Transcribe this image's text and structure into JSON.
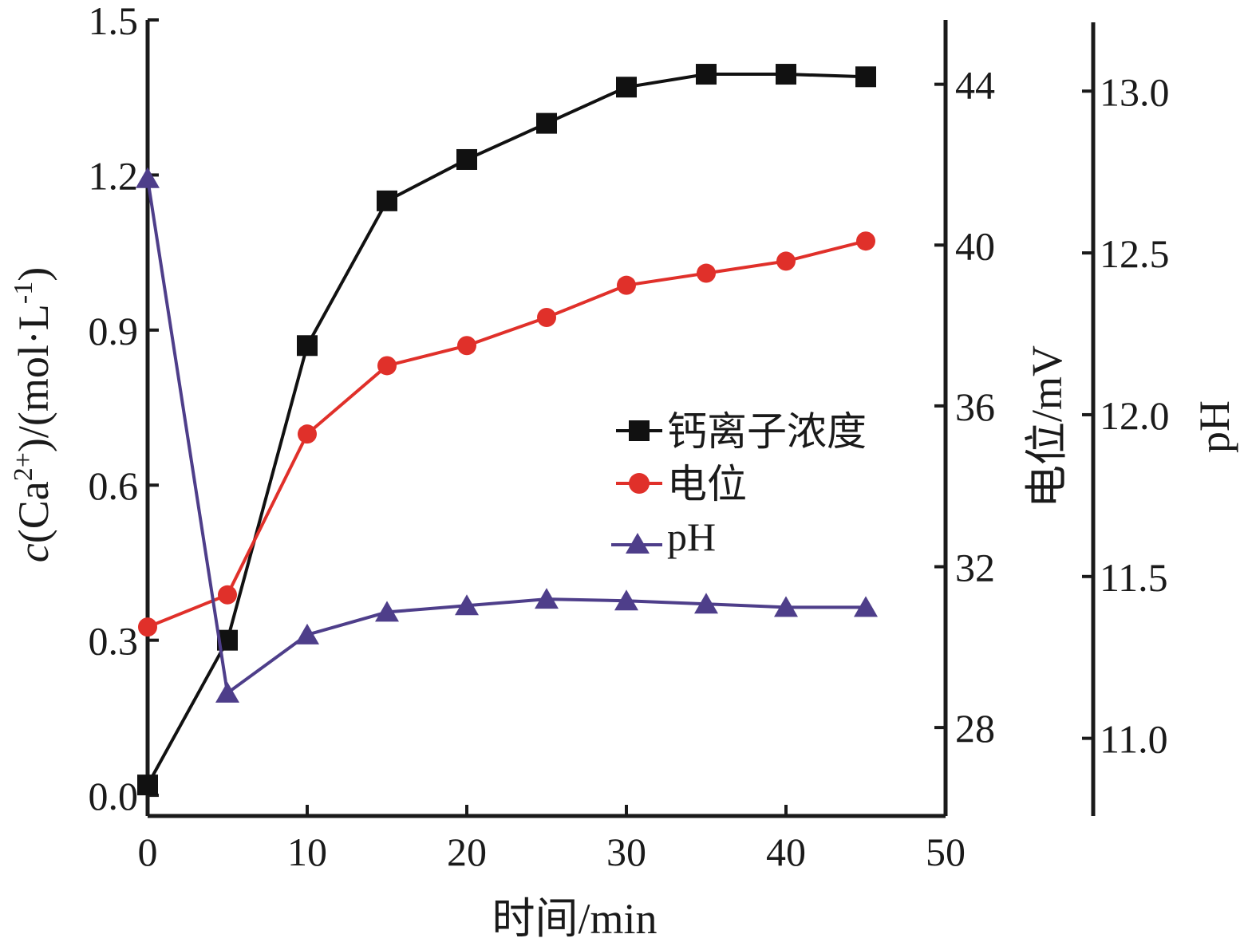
{
  "chart_data": {
    "type": "line",
    "x_axis": {
      "label": "时间/min",
      "range": [
        0,
        50
      ],
      "ticks": [
        0,
        10,
        20,
        30,
        40,
        50
      ],
      "tick_labels": [
        "0",
        "10",
        "20",
        "30",
        "40",
        "50"
      ]
    },
    "y_axes": {
      "left": {
        "label_prefix": "c",
        "label_rest": "(Ca",
        "label_sup1": "2+",
        "label_mid": ")/(mol·L",
        "label_sup2": "-1",
        "label_end": ")",
        "range": [
          -0.04,
          1.5
        ],
        "ticks": [
          0.0,
          0.3,
          0.6,
          0.9,
          1.2,
          1.5
        ],
        "tick_labels": [
          "0.0",
          "0.3",
          "0.6",
          "0.9",
          "1.2",
          "1.5"
        ]
      },
      "right1": {
        "label": "电位/mV",
        "range": [
          25.8,
          45.6
        ],
        "ticks": [
          28,
          32,
          36,
          40,
          44
        ],
        "tick_labels": [
          "28",
          "32",
          "36",
          "40",
          "44"
        ]
      },
      "right2": {
        "label": "pH",
        "range": [
          10.76,
          13.22
        ],
        "ticks": [
          11.0,
          11.5,
          12.0,
          12.5,
          13.0
        ],
        "tick_labels": [
          "11.0",
          "11.5",
          "12.0",
          "12.5",
          "13.0"
        ]
      }
    },
    "series": [
      {
        "name": "钙离子浓度",
        "axis": "left",
        "color": "#111111",
        "marker": "square",
        "x": [
          0,
          5,
          10,
          15,
          20,
          25,
          30,
          35,
          40,
          45
        ],
        "y": [
          0.02,
          0.3,
          0.87,
          1.15,
          1.23,
          1.3,
          1.37,
          1.395,
          1.395,
          1.39
        ]
      },
      {
        "name": "电位",
        "axis": "right1",
        "color": "#e0302a",
        "marker": "circle",
        "x": [
          0,
          5,
          10,
          15,
          20,
          25,
          30,
          35,
          40,
          45
        ],
        "y": [
          30.5,
          31.3,
          35.3,
          37.0,
          37.5,
          38.2,
          39.0,
          39.3,
          39.6,
          40.1
        ]
      },
      {
        "name": "pH",
        "axis": "right2",
        "color": "#4e3e8a",
        "marker": "triangle",
        "x": [
          0,
          5,
          10,
          15,
          20,
          25,
          30,
          35,
          40,
          45
        ],
        "y": [
          12.73,
          11.14,
          11.32,
          11.39,
          11.41,
          11.43,
          11.425,
          11.415,
          11.405,
          11.405
        ]
      }
    ],
    "legend": {
      "position": "center-right",
      "entries": [
        "钙离子浓度",
        "电位",
        "pH"
      ]
    },
    "grid": false
  }
}
